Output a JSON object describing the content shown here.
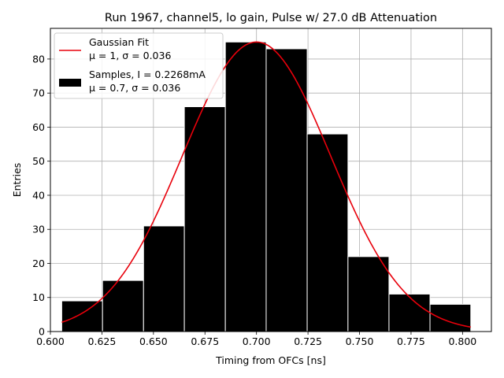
{
  "chart_data": {
    "type": "bar",
    "title": "Run 1967, channel5, lo gain, Pulse w/ 27.0 dB Attenuation",
    "xlabel": "Timing from OFCs [ns]",
    "ylabel": "Entries",
    "xlim": [
      0.6,
      0.814
    ],
    "ylim": [
      0,
      89
    ],
    "grid": true,
    "legend_position": "top-left",
    "x_ticks": [
      "0.600",
      "0.625",
      "0.650",
      "0.675",
      "0.700",
      "0.725",
      "0.750",
      "0.775",
      "0.800"
    ],
    "y_ticks": [
      "0",
      "10",
      "20",
      "30",
      "40",
      "50",
      "60",
      "70",
      "80"
    ],
    "bins": [
      {
        "left": 0.6055,
        "right": 0.6253,
        "count": 9
      },
      {
        "left": 0.6253,
        "right": 0.6452,
        "count": 15
      },
      {
        "left": 0.6452,
        "right": 0.665,
        "count": 31
      },
      {
        "left": 0.665,
        "right": 0.6849,
        "count": 66
      },
      {
        "left": 0.6849,
        "right": 0.7047,
        "count": 85
      },
      {
        "left": 0.7047,
        "right": 0.7246,
        "count": 83
      },
      {
        "left": 0.7246,
        "right": 0.7444,
        "count": 58
      },
      {
        "left": 0.7444,
        "right": 0.7643,
        "count": 22
      },
      {
        "left": 0.7643,
        "right": 0.7842,
        "count": 11
      },
      {
        "left": 0.7842,
        "right": 0.804,
        "count": 8
      }
    ],
    "fit": {
      "mu": 0.7,
      "sigma": 0.036,
      "amplitude": 85,
      "x_range": [
        0.6055,
        0.804
      ]
    },
    "series": [
      {
        "name": "Gaussian Fit",
        "detail": "μ = 1, σ = 0.036",
        "color": "#e8000b"
      },
      {
        "name": "Samples, I = 0.2268mA",
        "detail": "μ = 0.7, σ = 0.036",
        "color": "#000000"
      }
    ],
    "colors": {
      "bar_fill": "#000000",
      "bar_edge": "#ffffff",
      "grid": "#b0b0b0",
      "fit_line": "#e8000b"
    }
  }
}
